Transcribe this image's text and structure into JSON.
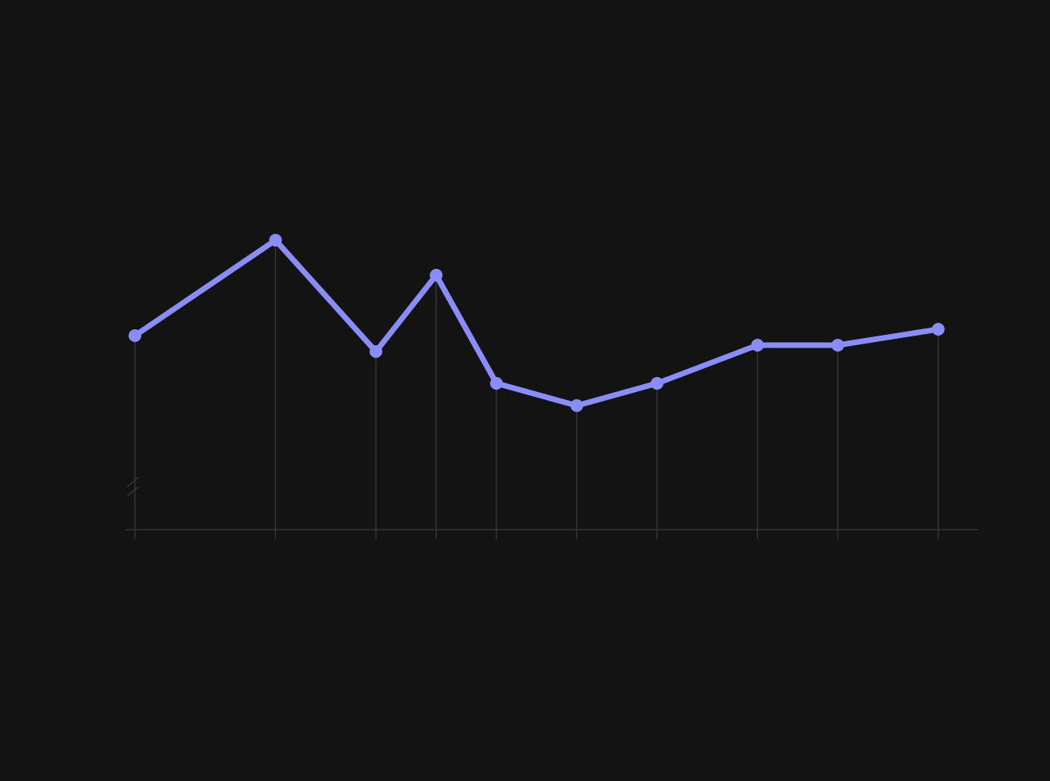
{
  "chart_data": {
    "type": "line",
    "x": [
      0,
      7,
      12,
      15,
      18,
      22,
      26,
      31,
      35,
      40
    ],
    "series": [
      {
        "color": "#8a8cf8",
        "values": [
          61,
          91,
          56,
          80,
          46,
          39,
          46,
          58,
          58,
          63
        ]
      }
    ],
    "xlim": [
      -0.5,
      42
    ],
    "ylim": [
      0,
      100
    ],
    "xticks": [
      0,
      7,
      12,
      15,
      18,
      22,
      26,
      31,
      35,
      40
    ],
    "background": "#131313",
    "grid_color": "#34343a"
  }
}
